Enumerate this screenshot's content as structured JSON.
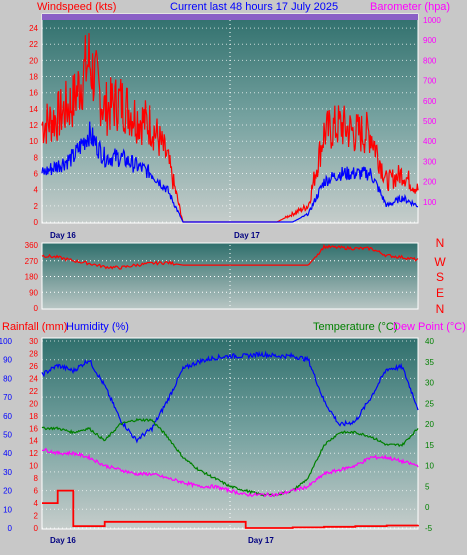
{
  "header": {
    "left_label": "Windspeed (kts)",
    "title": "Current last 48 hours 17 July 2025",
    "right_label": "Barometer (hpa)"
  },
  "wind_panel": {
    "left_ticks": [
      "24",
      "22",
      "20",
      "18",
      "16",
      "14",
      "12",
      "10",
      "8",
      "6",
      "4",
      "2",
      "0"
    ],
    "right_ticks": [
      "1000",
      "900",
      "800",
      "700",
      "600",
      "500",
      "400",
      "300",
      "200",
      "100"
    ],
    "day_labels": [
      "Day 16",
      "Day 17"
    ]
  },
  "dir_panel": {
    "left_ticks": [
      "360",
      "270",
      "180",
      "90",
      "0"
    ],
    "compass": [
      "N",
      "W",
      "S",
      "E",
      "N"
    ]
  },
  "bottom_header": {
    "rain_label": "Rainfall (mm)",
    "humidity_label": "Humidity (%)",
    "temp_label": "Temperature (°C)",
    "dew_label": "Dew Point (°C)"
  },
  "bottom_panel": {
    "humidity_ticks": [
      "100",
      "90",
      "80",
      "70",
      "60",
      "50",
      "40",
      "30",
      "20",
      "10",
      "0"
    ],
    "rain_ticks": [
      "30",
      "28",
      "26",
      "24",
      "22",
      "20",
      "18",
      "16",
      "14",
      "12",
      "10",
      "8",
      "6",
      "4",
      "2",
      "0"
    ],
    "temp_ticks": [
      "40",
      "35",
      "30",
      "25",
      "20",
      "15",
      "10",
      "5",
      "0",
      "-5"
    ],
    "day_labels": [
      "Day 16",
      "Day 17"
    ]
  },
  "colors": {
    "wind_gust": "#ff0000",
    "wind_avg": "#0000ff",
    "barometer_axis": "#ff00ff",
    "direction": "#ff0000",
    "humidity": "#0000ff",
    "rainfall": "#ff0000",
    "temperature": "#008000",
    "dew_point": "#ff00ff"
  },
  "chart_data": [
    {
      "type": "line",
      "title": "Current last 48 hours 17 July 2025",
      "ylabel": "Windspeed (kts)",
      "y2label": "Barometer (hpa)",
      "ylim": [
        0,
        25
      ],
      "y2lim": [
        0,
        1000
      ],
      "x_hours": [
        0,
        2,
        4,
        6,
        8,
        10,
        12,
        14,
        16,
        18,
        20,
        22,
        24,
        26,
        28,
        30,
        32,
        34,
        36,
        38,
        40,
        42,
        44,
        46,
        48
      ],
      "series": [
        {
          "name": "Windspeed (kts)",
          "role": "gust",
          "values": [
            12,
            13,
            15,
            20,
            14,
            15,
            13,
            12,
            8,
            0,
            0,
            0,
            0,
            0,
            0,
            0,
            1,
            2,
            11,
            12,
            11,
            11,
            5,
            6,
            4
          ]
        },
        {
          "name": "Windspeed (kts)",
          "role": "average",
          "values": [
            6,
            7,
            8,
            11,
            8,
            8,
            7,
            6,
            4,
            0,
            0,
            0,
            0,
            0,
            0,
            0,
            0,
            1,
            5,
            6,
            6,
            6,
            2,
            3,
            2
          ]
        }
      ]
    },
    {
      "type": "line",
      "ylabel": "Wind direction (degrees)",
      "ylim": [
        0,
        360
      ],
      "x_hours": [
        0,
        2,
        4,
        6,
        8,
        10,
        12,
        14,
        16,
        18,
        20,
        22,
        24,
        26,
        28,
        30,
        32,
        34,
        36,
        38,
        40,
        42,
        44,
        46,
        48
      ],
      "series": [
        {
          "name": "Wind direction",
          "values": [
            300,
            290,
            270,
            255,
            235,
            230,
            245,
            255,
            260,
            245,
            245,
            245,
            245,
            245,
            245,
            245,
            245,
            245,
            350,
            345,
            340,
            340,
            300,
            290,
            275
          ]
        }
      ]
    },
    {
      "type": "line",
      "ylabel": "Humidity (%)",
      "ylim": [
        0,
        100
      ],
      "x_hours": [
        0,
        2,
        4,
        6,
        8,
        10,
        12,
        14,
        16,
        18,
        20,
        22,
        24,
        26,
        28,
        30,
        32,
        34,
        36,
        38,
        40,
        42,
        44,
        46,
        48
      ],
      "series": [
        {
          "name": "Humidity (%)",
          "values": [
            82,
            87,
            84,
            90,
            76,
            58,
            47,
            53,
            68,
            85,
            89,
            91,
            92,
            92,
            93,
            92,
            92,
            90,
            68,
            55,
            57,
            70,
            85,
            86,
            64
          ]
        }
      ]
    },
    {
      "type": "line",
      "ylabel": "Temperature (°C)",
      "ylim": [
        -5,
        40
      ],
      "x_hours": [
        0,
        2,
        4,
        6,
        8,
        10,
        12,
        14,
        16,
        18,
        20,
        22,
        24,
        26,
        28,
        30,
        32,
        34,
        36,
        38,
        40,
        42,
        44,
        46,
        48
      ],
      "series": [
        {
          "name": "Temperature (°C)",
          "values": [
            19,
            19,
            18,
            19,
            16,
            20,
            21,
            21,
            17,
            12,
            9,
            7,
            5,
            4,
            3,
            3,
            4,
            7,
            15,
            18,
            18,
            17,
            15,
            15,
            19
          ]
        },
        {
          "name": "Dew Point (°C)",
          "values": [
            14,
            13,
            13,
            12,
            10,
            9,
            8,
            8,
            7,
            6,
            5,
            5,
            4,
            3,
            3,
            3,
            4,
            5,
            8,
            9,
            10,
            12,
            12,
            11,
            10
          ]
        }
      ]
    },
    {
      "type": "line",
      "ylabel": "Rainfall (mm)",
      "ylim": [
        0,
        30
      ],
      "x_hours": [
        0,
        1,
        2,
        4,
        8,
        12,
        16,
        20,
        24,
        26,
        28,
        32,
        36,
        40,
        44,
        48
      ],
      "series": [
        {
          "name": "Rainfall (mm)",
          "values": [
            4,
            4,
            6,
            0.3,
            1,
            1,
            1,
            1,
            1,
            0,
            0,
            0.1,
            0.2,
            0.3,
            0.4,
            0.5
          ]
        }
      ]
    }
  ]
}
